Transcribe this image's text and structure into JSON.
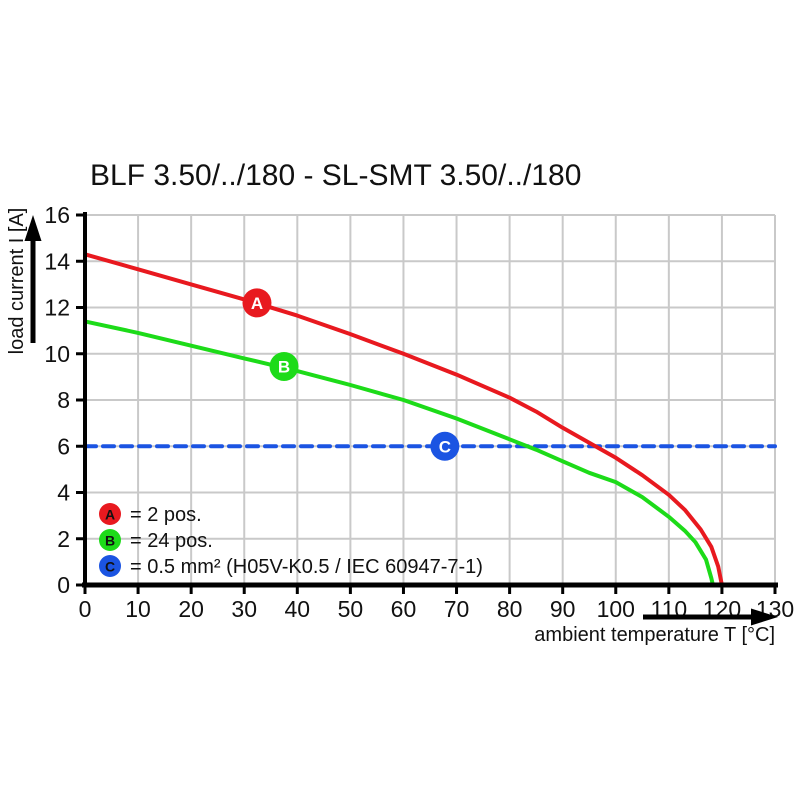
{
  "chart_data": {
    "type": "line",
    "title": "BLF 3.50/../180 - SL-SMT 3.50/../180",
    "xlabel": "ambient temperature T [°C]",
    "ylabel": "load current I [A]",
    "xlim": [
      0,
      130
    ],
    "ylim": [
      0,
      16
    ],
    "x_ticks": [
      0,
      10,
      20,
      30,
      40,
      50,
      60,
      70,
      80,
      90,
      100,
      110,
      120,
      130
    ],
    "y_ticks": [
      0,
      2,
      4,
      6,
      8,
      10,
      12,
      14,
      16
    ],
    "grid": true,
    "grid_color": "#c9c9c9",
    "axis_color": "#000000",
    "legend_position": "lower-left-inside",
    "series": [
      {
        "name": "2 pos.",
        "marker_letter": "A",
        "color": "#e8191f",
        "style": "solid",
        "marker_at": [
          32.4,
          12.2
        ],
        "points": [
          [
            0,
            14.3
          ],
          [
            10,
            13.65
          ],
          [
            20,
            13.0
          ],
          [
            30,
            12.35
          ],
          [
            40,
            11.65
          ],
          [
            50,
            10.85
          ],
          [
            60,
            10.0
          ],
          [
            70,
            9.1
          ],
          [
            80,
            8.1
          ],
          [
            85,
            7.5
          ],
          [
            90,
            6.8
          ],
          [
            95,
            6.15
          ],
          [
            100,
            5.5
          ],
          [
            105,
            4.75
          ],
          [
            110,
            3.9
          ],
          [
            113,
            3.25
          ],
          [
            116,
            2.4
          ],
          [
            118,
            1.65
          ],
          [
            119.3,
            0.8
          ],
          [
            120,
            0
          ]
        ]
      },
      {
        "name": "24 pos.",
        "marker_letter": "B",
        "color": "#1ddb19",
        "style": "solid",
        "marker_at": [
          37.5,
          9.45
        ],
        "points": [
          [
            0,
            11.4
          ],
          [
            10,
            10.9
          ],
          [
            20,
            10.35
          ],
          [
            30,
            9.8
          ],
          [
            40,
            9.25
          ],
          [
            50,
            8.65
          ],
          [
            60,
            8.0
          ],
          [
            70,
            7.2
          ],
          [
            80,
            6.3
          ],
          [
            85,
            5.85
          ],
          [
            90,
            5.35
          ],
          [
            95,
            4.85
          ],
          [
            100,
            4.45
          ],
          [
            105,
            3.8
          ],
          [
            110,
            2.95
          ],
          [
            113,
            2.35
          ],
          [
            115,
            1.85
          ],
          [
            117,
            1.1
          ],
          [
            118,
            0.3
          ],
          [
            118.3,
            0
          ]
        ]
      },
      {
        "name": "0.5 mm² (H05V-K0.5 / IEC 60947-7-1)",
        "marker_letter": "C",
        "color": "#1b54e2",
        "style": "dashed",
        "marker_at": [
          67.8,
          6
        ],
        "points": [
          [
            0,
            6
          ],
          [
            130,
            6
          ]
        ]
      }
    ]
  },
  "legend": {
    "items": [
      {
        "letter": "A",
        "color": "#e8191f",
        "label": "= 2 pos."
      },
      {
        "letter": "B",
        "color": "#1ddb19",
        "label": "= 24 pos."
      },
      {
        "letter": "C",
        "color": "#1b54e2",
        "label": "= 0.5 mm² (H05V-K0.5 / IEC 60947-7-1)"
      }
    ]
  }
}
